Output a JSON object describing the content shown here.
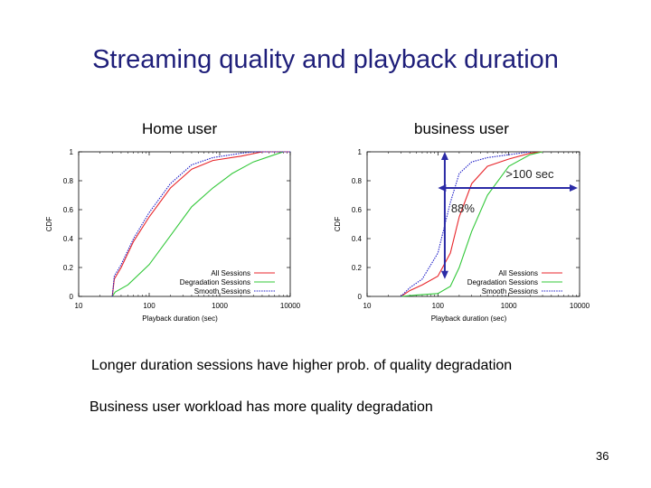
{
  "slide": {
    "title": "Streaming quality and playback duration",
    "page_number": "36"
  },
  "bullets": [
    "Longer duration sessions have higher prob. of quality degradation",
    "Business user workload has more quality degradation"
  ],
  "colors": {
    "title": "#1f1f7a",
    "all_sessions": "#e8262b",
    "degradation_sessions": "#33c83a",
    "smooth_sessions": "#1e1ec8",
    "annotation": "#2b2ba6"
  },
  "chart_data": [
    {
      "type": "line",
      "title": "Home user",
      "xlabel": "Playback duration (sec)",
      "ylabel": "CDF",
      "xscale": "log",
      "xlim": [
        10,
        10000
      ],
      "ylim": [
        0,
        1
      ],
      "xticks": [
        "10",
        "100",
        "1000",
        "10000"
      ],
      "yticks": [
        "0",
        "0.2",
        "0.4",
        "0.6",
        "0.8",
        "1"
      ],
      "legend_position": "bottom-right",
      "series": [
        {
          "name": "All Sessions",
          "style": "solid",
          "points": [
            [
              30,
              0
            ],
            [
              32,
              0.12
            ],
            [
              40,
              0.2
            ],
            [
              60,
              0.38
            ],
            [
              100,
              0.55
            ],
            [
              200,
              0.75
            ],
            [
              400,
              0.88
            ],
            [
              800,
              0.94
            ],
            [
              2000,
              0.97
            ],
            [
              4000,
              1.0
            ],
            [
              10000,
              1.0
            ]
          ]
        },
        {
          "name": "Degradation Sessions",
          "style": "solid",
          "points": [
            [
              30,
              0
            ],
            [
              33,
              0.03
            ],
            [
              50,
              0.08
            ],
            [
              100,
              0.22
            ],
            [
              200,
              0.42
            ],
            [
              400,
              0.62
            ],
            [
              800,
              0.75
            ],
            [
              1500,
              0.85
            ],
            [
              3000,
              0.93
            ],
            [
              6000,
              0.98
            ],
            [
              8000,
              1.0
            ]
          ]
        },
        {
          "name": "Smooth Sessions",
          "style": "dotted",
          "points": [
            [
              30,
              0
            ],
            [
              32,
              0.14
            ],
            [
              40,
              0.22
            ],
            [
              60,
              0.4
            ],
            [
              100,
              0.58
            ],
            [
              200,
              0.78
            ],
            [
              400,
              0.91
            ],
            [
              800,
              0.96
            ],
            [
              2000,
              0.99
            ],
            [
              3000,
              1.0
            ],
            [
              10000,
              1.0
            ]
          ]
        }
      ]
    },
    {
      "type": "line",
      "title": "business user",
      "xlabel": "Playback duration (sec)",
      "ylabel": "CDF",
      "xscale": "log",
      "xlim": [
        10,
        10000
      ],
      "ylim": [
        0,
        1
      ],
      "xticks": [
        "10",
        "100",
        "1000",
        "10000"
      ],
      "yticks": [
        "0",
        "0.2",
        "0.4",
        "0.6",
        "0.8",
        "1"
      ],
      "legend_position": "bottom-right",
      "annotations": [
        {
          "text": ">100 sec",
          "arrow": "horizontal",
          "from_x": 100,
          "to_x": 10000,
          "y": 0.75
        },
        {
          "text": "88%",
          "arrow": "vertical",
          "x": 125,
          "from_y": 0.12,
          "to_y": 1.0
        }
      ],
      "series": [
        {
          "name": "All Sessions",
          "style": "solid",
          "points": [
            [
              30,
              0
            ],
            [
              40,
              0.04
            ],
            [
              60,
              0.08
            ],
            [
              100,
              0.14
            ],
            [
              150,
              0.3
            ],
            [
              200,
              0.55
            ],
            [
              300,
              0.78
            ],
            [
              500,
              0.9
            ],
            [
              1000,
              0.95
            ],
            [
              2000,
              0.99
            ],
            [
              3000,
              1.0
            ]
          ]
        },
        {
          "name": "Degradation Sessions",
          "style": "solid",
          "points": [
            [
              30,
              0
            ],
            [
              50,
              0.01
            ],
            [
              100,
              0.02
            ],
            [
              150,
              0.07
            ],
            [
              200,
              0.2
            ],
            [
              300,
              0.45
            ],
            [
              500,
              0.7
            ],
            [
              1000,
              0.9
            ],
            [
              2000,
              0.98
            ],
            [
              3000,
              1.0
            ]
          ]
        },
        {
          "name": "Smooth Sessions",
          "style": "dotted",
          "points": [
            [
              30,
              0
            ],
            [
              40,
              0.06
            ],
            [
              60,
              0.12
            ],
            [
              100,
              0.3
            ],
            [
              150,
              0.65
            ],
            [
              200,
              0.85
            ],
            [
              300,
              0.93
            ],
            [
              500,
              0.96
            ],
            [
              1000,
              0.98
            ],
            [
              2000,
              1.0
            ]
          ]
        }
      ]
    }
  ]
}
